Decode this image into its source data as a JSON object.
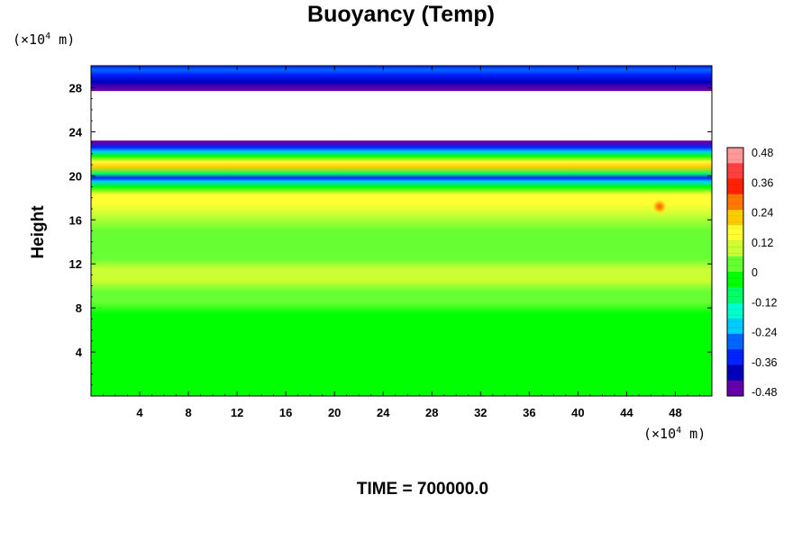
{
  "chart_data": {
    "type": "heatmap",
    "title": "Buoyancy (Temp)",
    "ylabel": "Height",
    "xlabel": "",
    "x_unit": {
      "prefix": "(×10",
      "exp": "4",
      "suffix": " m)"
    },
    "y_unit": {
      "prefix": "(×10",
      "exp": "4",
      "suffix": " m)"
    },
    "xlim": [
      0,
      51
    ],
    "ylim": [
      0,
      30
    ],
    "x_ticks": [
      4,
      8,
      12,
      16,
      20,
      24,
      28,
      32,
      36,
      40,
      44,
      48
    ],
    "y_ticks": [
      4,
      8,
      12,
      16,
      20,
      24,
      28
    ],
    "footer": "TIME = 700000.0",
    "colorbar": {
      "labels": [
        "0.48",
        "0.36",
        "0.24",
        "0.12",
        "0",
        "-0.12",
        "-0.24",
        "-0.36",
        "-0.48"
      ],
      "range": [
        -0.48,
        0.48
      ],
      "colors": [
        "#ff9999",
        "#ff4040",
        "#ff2200",
        "#ff7700",
        "#ffcc00",
        "#ffff33",
        "#ccff33",
        "#66ff33",
        "#00ff00",
        "#00ff66",
        "#00ffcc",
        "#00ccff",
        "#0066ff",
        "#0022ff",
        "#0000bb",
        "#6600aa"
      ]
    },
    "height_profile": [
      {
        "h": 0.0,
        "v": 0.0
      },
      {
        "h": 7.5,
        "v": 0.0
      },
      {
        "h": 8.5,
        "v": 0.03
      },
      {
        "h": 9.5,
        "v": 0.06
      },
      {
        "h": 10.5,
        "v": 0.1
      },
      {
        "h": 11.5,
        "v": 0.08
      },
      {
        "h": 12.5,
        "v": 0.06
      },
      {
        "h": 13.5,
        "v": 0.05
      },
      {
        "h": 15.0,
        "v": 0.06
      },
      {
        "h": 16.5,
        "v": 0.08
      },
      {
        "h": 17.5,
        "v": 0.13
      },
      {
        "h": 18.3,
        "v": 0.15
      },
      {
        "h": 19.0,
        "v": 0.0
      },
      {
        "h": 19.5,
        "v": -0.2
      },
      {
        "h": 19.8,
        "v": -0.38
      },
      {
        "h": 20.2,
        "v": -0.12
      },
      {
        "h": 20.8,
        "v": 0.22
      },
      {
        "h": 21.3,
        "v": 0.15
      },
      {
        "h": 21.8,
        "v": 0.0
      },
      {
        "h": 22.2,
        "v": -0.2
      },
      {
        "h": 22.6,
        "v": -0.38
      },
      {
        "h": 23.0,
        "v": -0.48
      },
      {
        "h": 27.9,
        "v": -0.48
      },
      {
        "h": 28.5,
        "v": -0.42
      },
      {
        "h": 29.2,
        "v": -0.36
      },
      {
        "h": 29.6,
        "v": -0.3
      },
      {
        "h": 30.0,
        "v": -0.34
      }
    ],
    "empty_band": [
      23.2,
      27.7
    ],
    "hot_spot": {
      "x": 46.7,
      "y": 17.2,
      "v": 0.3
    }
  }
}
